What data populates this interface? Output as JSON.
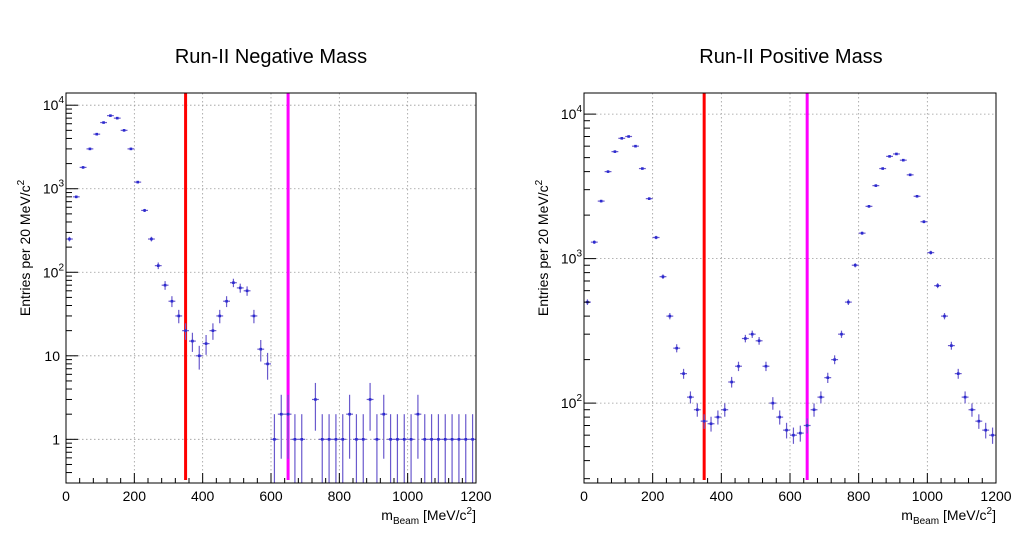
{
  "chart_data": [
    {
      "type": "scatter",
      "title": "Run-II Negative Mass",
      "ylabel": "Entries per 20  MeV/c",
      "ylabel_sup": "2",
      "xlabel_prefix": "m",
      "xlabel_sub": "Beam",
      "xlabel_suffix": " [MeV/c",
      "xlabel_sup": "2",
      "xlabel_close": "]",
      "xlim": [
        0,
        1200
      ],
      "ylim": [
        0.3,
        14000
      ],
      "yscale": "log",
      "grid": true,
      "x_ticks": [
        0,
        200,
        400,
        600,
        800,
        1000,
        1200
      ],
      "y_ticks": [
        {
          "value": 1,
          "label": "1",
          "sup": ""
        },
        {
          "value": 10,
          "label": "10",
          "sup": ""
        },
        {
          "value": 100,
          "label": "10",
          "sup": "2"
        },
        {
          "value": 1000,
          "label": "10",
          "sup": "3"
        },
        {
          "value": 10000,
          "label": "10",
          "sup": "4"
        }
      ],
      "cut_lines": [
        {
          "x": 350,
          "color": "#ff0000"
        },
        {
          "x": 650,
          "color": "#ff00ff"
        }
      ],
      "marker_color": "#2b2bd0",
      "error_color": "#6a5acd",
      "series": [
        {
          "x": [
            10,
            30,
            50,
            70,
            90,
            110,
            130,
            150,
            170,
            190,
            210,
            230,
            250,
            270,
            290,
            310,
            330,
            350,
            370,
            390,
            410,
            430,
            450,
            470,
            490,
            510,
            530,
            550,
            570,
            590,
            610,
            630,
            650,
            670,
            690,
            710,
            730,
            750,
            770,
            790,
            810,
            830,
            850,
            870,
            890,
            910,
            930,
            950,
            970,
            990,
            1010,
            1030,
            1050,
            1070,
            1090,
            1110,
            1130,
            1150,
            1170,
            1190
          ],
          "y": [
            250,
            800,
            1800,
            3000,
            4500,
            6200,
            7500,
            7000,
            5000,
            3000,
            1200,
            550,
            250,
            120,
            70,
            45,
            30,
            20,
            15,
            10,
            14,
            20,
            30,
            45,
            75,
            65,
            60,
            30,
            12,
            8,
            1,
            2,
            2,
            1,
            1,
            0,
            3,
            1,
            1,
            1,
            1,
            2,
            1,
            1,
            3,
            1,
            2,
            1,
            1,
            1,
            1,
            2,
            1,
            1,
            1,
            1,
            1,
            1,
            1,
            1
          ]
        }
      ]
    },
    {
      "type": "scatter",
      "title": "Run-II Positive Mass",
      "ylabel": "Entries per 20  MeV/c",
      "ylabel_sup": "2",
      "xlabel_prefix": "m",
      "xlabel_sub": "Beam",
      "xlabel_suffix": " [MeV/c",
      "xlabel_sup": "2",
      "xlabel_close": "]",
      "xlim": [
        0,
        1200
      ],
      "ylim": [
        28,
        14000
      ],
      "yscale": "log",
      "grid": true,
      "x_ticks": [
        0,
        200,
        400,
        600,
        800,
        1000,
        1200
      ],
      "y_ticks": [
        {
          "value": 100,
          "label": "10",
          "sup": "2"
        },
        {
          "value": 1000,
          "label": "10",
          "sup": "3"
        },
        {
          "value": 10000,
          "label": "10",
          "sup": "4"
        }
      ],
      "cut_lines": [
        {
          "x": 350,
          "color": "#ff0000"
        },
        {
          "x": 650,
          "color": "#ff00ff"
        }
      ],
      "marker_color": "#2b2bd0",
      "error_color": "#6a5acd",
      "series": [
        {
          "x": [
            10,
            30,
            50,
            70,
            90,
            110,
            130,
            150,
            170,
            190,
            210,
            230,
            250,
            270,
            290,
            310,
            330,
            350,
            370,
            390,
            410,
            430,
            450,
            470,
            490,
            510,
            530,
            550,
            570,
            590,
            610,
            630,
            650,
            670,
            690,
            710,
            730,
            750,
            770,
            790,
            810,
            830,
            850,
            870,
            890,
            910,
            930,
            950,
            970,
            990,
            1010,
            1030,
            1050,
            1070,
            1090,
            1110,
            1130,
            1150,
            1170,
            1190
          ],
          "y": [
            500,
            1300,
            2500,
            4000,
            5500,
            6800,
            7000,
            6000,
            4200,
            2600,
            1400,
            750,
            400,
            240,
            160,
            110,
            90,
            75,
            72,
            80,
            90,
            140,
            180,
            280,
            300,
            270,
            180,
            100,
            80,
            65,
            60,
            62,
            70,
            90,
            110,
            150,
            200,
            300,
            500,
            900,
            1500,
            2300,
            3200,
            4200,
            5100,
            5300,
            4800,
            3800,
            2700,
            1800,
            1100,
            650,
            400,
            250,
            160,
            110,
            90,
            75,
            65,
            60
          ]
        }
      ]
    }
  ]
}
